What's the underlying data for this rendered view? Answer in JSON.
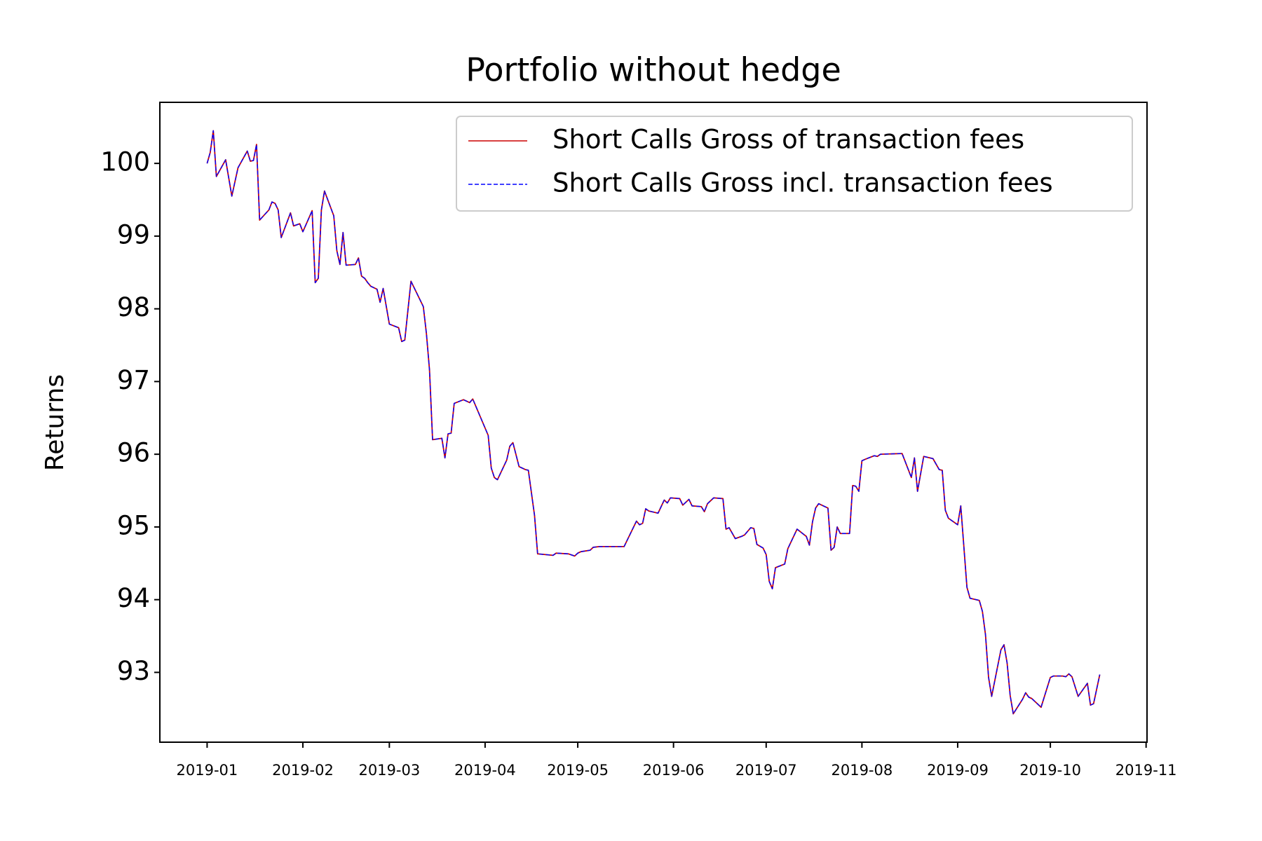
{
  "chart_data": {
    "type": "line",
    "title": "Portfolio without hedge",
    "y_label": "Returns",
    "x": [
      0,
      1,
      2,
      3,
      6,
      8,
      10,
      13,
      14,
      15,
      16,
      17,
      20,
      21,
      22,
      23,
      24,
      27,
      28,
      30,
      31,
      34,
      35,
      36,
      37,
      38,
      41,
      42,
      43,
      44,
      45,
      48,
      49,
      50,
      51,
      52,
      53,
      55,
      56,
      57,
      59,
      62,
      63,
      64,
      66,
      70,
      71,
      72,
      73,
      76,
      77,
      78,
      79,
      80,
      83,
      85,
      86,
      91,
      92,
      93,
      94,
      97,
      98,
      99,
      101,
      103,
      104,
      106,
      107,
      112,
      113,
      117,
      119,
      120,
      121,
      124,
      125,
      127,
      135,
      139,
      140,
      141,
      142,
      143,
      146,
      148,
      149,
      150,
      153,
      154,
      156,
      157,
      160,
      161,
      162,
      164,
      167,
      168,
      169,
      171,
      173,
      174,
      176,
      177,
      178,
      180,
      181,
      182,
      183,
      184,
      187,
      188,
      191,
      194,
      195,
      196,
      197,
      198,
      201,
      202,
      203,
      204,
      205,
      208,
      209,
      210,
      211,
      212,
      213,
      216,
      217,
      218,
      225,
      228,
      229,
      230,
      232,
      235,
      237,
      238,
      239,
      240,
      243,
      244,
      246,
      247,
      250,
      251,
      252,
      253,
      254,
      257,
      258,
      259,
      260,
      261,
      264,
      265,
      266,
      267,
      268,
      270,
      273,
      274,
      277,
      278,
      279,
      280,
      282,
      285,
      286,
      287,
      289
    ],
    "series": [
      {
        "name": "Short Calls Gross of transaction fees",
        "color": "#cc0000",
        "linestyle": "solid",
        "values": [
          100.0,
          100.15,
          100.45,
          99.82,
          100.05,
          99.55,
          99.94,
          100.17,
          100.03,
          100.04,
          100.26,
          99.22,
          99.36,
          99.47,
          99.45,
          99.36,
          98.98,
          99.32,
          99.14,
          99.17,
          99.06,
          99.35,
          98.36,
          98.42,
          99.36,
          99.62,
          99.28,
          98.8,
          98.61,
          99.05,
          98.6,
          98.61,
          98.7,
          98.45,
          98.42,
          98.36,
          98.31,
          98.27,
          98.09,
          98.28,
          97.79,
          97.74,
          97.55,
          97.57,
          98.38,
          98.03,
          97.66,
          97.16,
          96.2,
          96.22,
          95.95,
          96.28,
          96.29,
          96.7,
          96.75,
          96.71,
          96.76,
          96.26,
          95.81,
          95.68,
          95.65,
          95.92,
          96.11,
          96.16,
          95.83,
          95.79,
          95.78,
          95.16,
          94.63,
          94.61,
          94.64,
          94.63,
          94.6,
          94.64,
          94.66,
          94.68,
          94.72,
          94.73,
          94.73,
          95.08,
          95.03,
          95.05,
          95.25,
          95.22,
          95.19,
          95.37,
          95.33,
          95.4,
          95.39,
          95.3,
          95.38,
          95.29,
          95.28,
          95.21,
          95.32,
          95.4,
          95.39,
          94.97,
          94.99,
          94.84,
          94.87,
          94.89,
          94.99,
          94.98,
          94.76,
          94.71,
          94.62,
          94.25,
          94.15,
          94.44,
          94.49,
          94.7,
          94.97,
          94.87,
          94.75,
          95.07,
          95.26,
          95.32,
          95.26,
          94.68,
          94.72,
          95.0,
          94.91,
          94.91,
          95.57,
          95.56,
          95.49,
          95.91,
          95.93,
          95.98,
          95.97,
          96.0,
          96.01,
          95.68,
          95.95,
          95.49,
          95.97,
          95.94,
          95.79,
          95.78,
          95.23,
          95.12,
          95.03,
          95.29,
          94.17,
          94.02,
          93.99,
          93.84,
          93.52,
          92.93,
          92.67,
          93.31,
          93.38,
          93.13,
          92.68,
          92.43,
          92.63,
          92.72,
          92.66,
          92.64,
          92.6,
          92.52,
          92.93,
          92.95,
          92.95,
          92.94,
          92.98,
          92.94,
          92.67,
          92.85,
          92.55,
          92.57,
          92.97
        ]
      },
      {
        "name": "Short Calls Gross incl. transaction fees",
        "color": "#0000ff",
        "linestyle": "dashed",
        "values": [
          100.0,
          100.15,
          100.45,
          99.82,
          100.05,
          99.55,
          99.94,
          100.17,
          100.03,
          100.04,
          100.26,
          99.22,
          99.36,
          99.47,
          99.45,
          99.36,
          98.98,
          99.32,
          99.14,
          99.17,
          99.06,
          99.35,
          98.36,
          98.42,
          99.36,
          99.62,
          99.28,
          98.8,
          98.61,
          99.05,
          98.6,
          98.61,
          98.7,
          98.45,
          98.42,
          98.36,
          98.31,
          98.27,
          98.09,
          98.28,
          97.79,
          97.74,
          97.55,
          97.57,
          98.38,
          98.03,
          97.66,
          97.16,
          96.2,
          96.22,
          95.95,
          96.28,
          96.29,
          96.7,
          96.75,
          96.71,
          96.76,
          96.26,
          95.81,
          95.68,
          95.65,
          95.92,
          96.11,
          96.16,
          95.83,
          95.79,
          95.78,
          95.16,
          94.63,
          94.61,
          94.64,
          94.63,
          94.6,
          94.64,
          94.66,
          94.68,
          94.72,
          94.73,
          94.73,
          95.08,
          95.03,
          95.05,
          95.25,
          95.22,
          95.19,
          95.37,
          95.33,
          95.4,
          95.39,
          95.3,
          95.38,
          95.29,
          95.28,
          95.21,
          95.32,
          95.4,
          95.39,
          94.97,
          94.99,
          94.84,
          94.87,
          94.89,
          94.99,
          94.98,
          94.76,
          94.71,
          94.62,
          94.25,
          94.15,
          94.44,
          94.49,
          94.7,
          94.97,
          94.87,
          94.75,
          95.07,
          95.26,
          95.32,
          95.26,
          94.68,
          94.72,
          95.0,
          94.91,
          94.91,
          95.57,
          95.56,
          95.49,
          95.91,
          95.93,
          95.98,
          95.97,
          96.0,
          96.01,
          95.68,
          95.95,
          95.49,
          95.97,
          95.94,
          95.79,
          95.78,
          95.23,
          95.12,
          95.03,
          95.29,
          94.17,
          94.02,
          93.99,
          93.84,
          93.52,
          92.93,
          92.67,
          93.31,
          93.38,
          93.13,
          92.68,
          92.43,
          92.63,
          92.72,
          92.66,
          92.64,
          92.6,
          92.52,
          92.93,
          92.95,
          92.95,
          92.94,
          92.98,
          92.94,
          92.67,
          92.85,
          92.55,
          92.57,
          92.97
        ]
      }
    ],
    "xlim": [
      -15.3,
      304.3
    ],
    "xticks": [
      {
        "value": 0,
        "label": "2019-01"
      },
      {
        "value": 31,
        "label": "2019-02"
      },
      {
        "value": 59,
        "label": "2019-03"
      },
      {
        "value": 90,
        "label": "2019-04"
      },
      {
        "value": 120,
        "label": "2019-05"
      },
      {
        "value": 151,
        "label": "2019-06"
      },
      {
        "value": 181,
        "label": "2019-07"
      },
      {
        "value": 212,
        "label": "2019-08"
      },
      {
        "value": 243,
        "label": "2019-09"
      },
      {
        "value": 273,
        "label": "2019-10"
      },
      {
        "value": 304,
        "label": "2019-11"
      }
    ],
    "ylim": [
      92.04,
      100.84
    ],
    "yticks": [
      93,
      94,
      95,
      96,
      97,
      98,
      99,
      100
    ],
    "legend": "upper right",
    "grid": false
  }
}
